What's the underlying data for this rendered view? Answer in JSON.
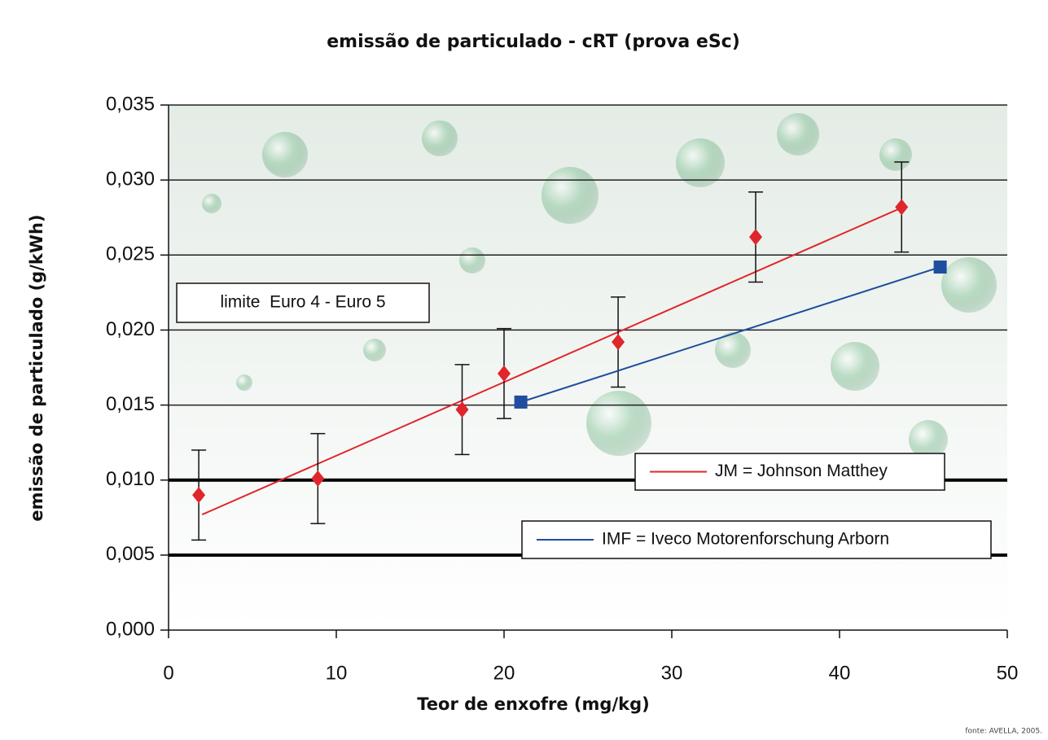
{
  "chart_data": {
    "type": "scatter",
    "title": "emissão de particulado - cRT (prova eSc)",
    "x_label": "Teor de enxofre (mg/kg)",
    "y_label": "emissão de particulado (g/kWh)",
    "xlim": [
      0,
      50
    ],
    "xticks": [
      0,
      10,
      20,
      30,
      40,
      50
    ],
    "ylim": [
      0,
      0.035
    ],
    "yticks": [
      {
        "value": 0,
        "label": "0,000"
      },
      {
        "value": 0.005,
        "label": "0,005"
      },
      {
        "value": 0.01,
        "label": "0,010"
      },
      {
        "value": 0.015,
        "label": "0,015"
      },
      {
        "value": 0.02,
        "label": "0,020"
      },
      {
        "value": 0.025,
        "label": "0,025"
      },
      {
        "value": 0.03,
        "label": "0,030"
      },
      {
        "value": 0.035,
        "label": "0,035"
      }
    ],
    "grid": true,
    "thick_lines": [
      0.005,
      0.01
    ],
    "series": [
      {
        "name": "JM = Johnson Matthey",
        "color": "#e0262c",
        "marker": "diamond",
        "x": [
          1.8,
          8.9,
          17.5,
          20,
          26.8,
          35,
          43.7
        ],
        "values": [
          0.009,
          0.0101,
          0.0147,
          0.0171,
          0.0192,
          0.0262,
          0.0282
        ],
        "errors": [
          0.003,
          0.003,
          0.003,
          0.003,
          0.003,
          0.003,
          0.003
        ],
        "trend": {
          "x": [
            2,
            44
          ],
          "values": [
            0.0077,
            0.0283
          ]
        }
      },
      {
        "name": "IMF = Iveco Motorenforschung Arborn",
        "color": "#1f4e9e",
        "marker": "square",
        "x": [
          21,
          46
        ],
        "values": [
          0.0152,
          0.0242
        ]
      }
    ],
    "annotation": "limite  Euro 4 - Euro 5",
    "source": "fonte: AVELLA, 2005."
  }
}
